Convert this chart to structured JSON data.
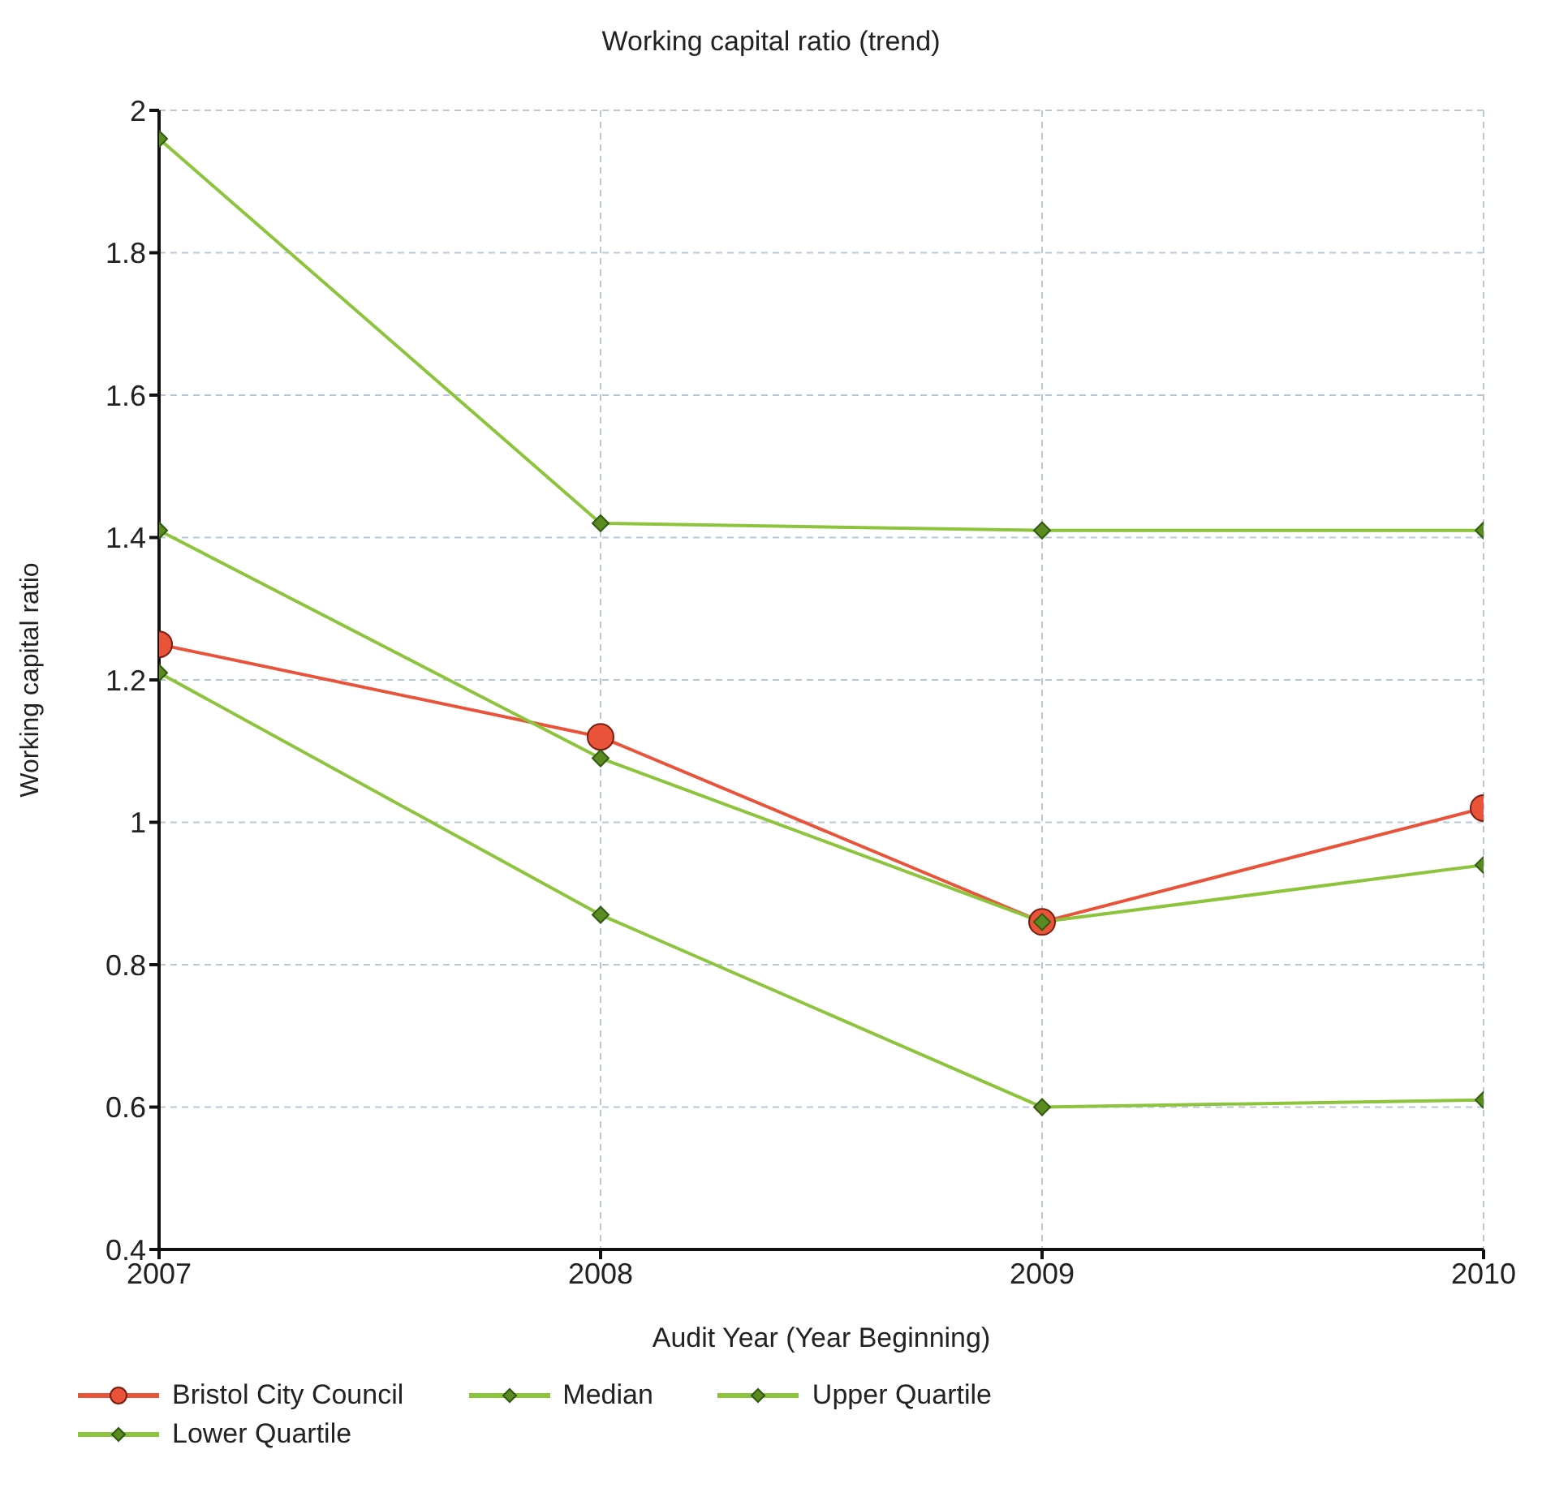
{
  "chart_data": {
    "type": "line",
    "title": "Working capital ratio (trend)",
    "xlabel": "Audit Year (Year Beginning)",
    "ylabel": "Working capital ratio",
    "x": [
      2007,
      2008,
      2009,
      2010
    ],
    "xlim": [
      2007,
      2010
    ],
    "xticks": [
      2007,
      2008,
      2009,
      2010
    ],
    "ylim": [
      0.4,
      2
    ],
    "yticks": [
      0.4,
      0.6,
      0.8,
      1,
      1.2,
      1.4,
      1.6,
      1.8,
      2
    ],
    "grid": true,
    "legend": "bottom left",
    "line_style": "solid",
    "series": [
      {
        "name": "Bristol City Council",
        "color": "#e8533a",
        "marker": "circle",
        "values": [
          1.25,
          1.12,
          0.86,
          1.02
        ]
      },
      {
        "name": "Median",
        "color": "#8cc43c",
        "marker": "diamond",
        "values": [
          1.41,
          1.09,
          0.86,
          0.94
        ]
      },
      {
        "name": "Upper Quartile",
        "color": "#8cc43c",
        "marker": "diamond",
        "values": [
          1.96,
          1.42,
          1.41,
          1.41
        ]
      },
      {
        "name": "Lower Quartile",
        "color": "#8cc43c",
        "marker": "diamond",
        "values": [
          1.21,
          0.87,
          0.6,
          0.61
        ]
      }
    ]
  }
}
